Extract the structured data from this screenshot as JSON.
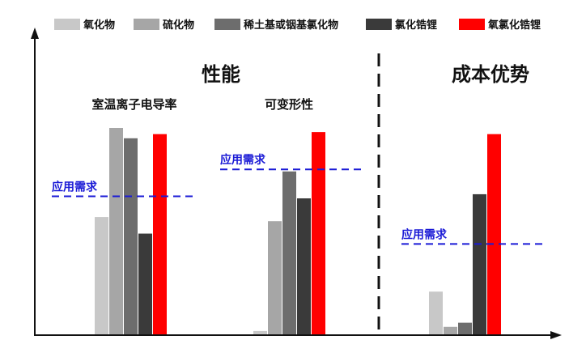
{
  "legend": {
    "items": [
      {
        "label": "氧化物",
        "color": "#c8c8c8"
      },
      {
        "label": "硫化物",
        "color": "#a6a6a6"
      },
      {
        "label": "稀土基或铟基氯化物",
        "color": "#6d6d6d"
      },
      {
        "label": "氯化锆锂",
        "color": "#3a3a3a"
      },
      {
        "label": "氧氯化锆锂",
        "color": "#ff0000"
      }
    ]
  },
  "sections": {
    "left_title": "性能",
    "right_title": "成本优势"
  },
  "groups": [
    {
      "title": "室温离子电导率",
      "requirement_label": "应用需求"
    },
    {
      "title": "可变形性",
      "requirement_label": "应用需求"
    },
    {
      "title": "",
      "requirement_label": "应用需求"
    }
  ],
  "chart_data": {
    "type": "bar",
    "categories": [
      "室温离子电导率",
      "可变形性",
      "成本优势"
    ],
    "series": [
      {
        "name": "氧化物",
        "values": [
          0.57,
          0.02,
          0.21
        ]
      },
      {
        "name": "硫化物",
        "values": [
          1.0,
          0.55,
          0.04
        ]
      },
      {
        "name": "稀土基或铟基氯化物",
        "values": [
          0.95,
          0.79,
          0.06
        ]
      },
      {
        "name": "氯化锆锂",
        "values": [
          0.49,
          0.66,
          0.68
        ]
      },
      {
        "name": "氧氯化锆锂",
        "values": [
          0.97,
          0.98,
          0.97
        ]
      }
    ],
    "requirement_levels": [
      0.67,
      0.8,
      0.44
    ],
    "ylim": [
      0,
      1
    ],
    "axis_ticks": false,
    "grid": false,
    "legend_position": "top"
  }
}
